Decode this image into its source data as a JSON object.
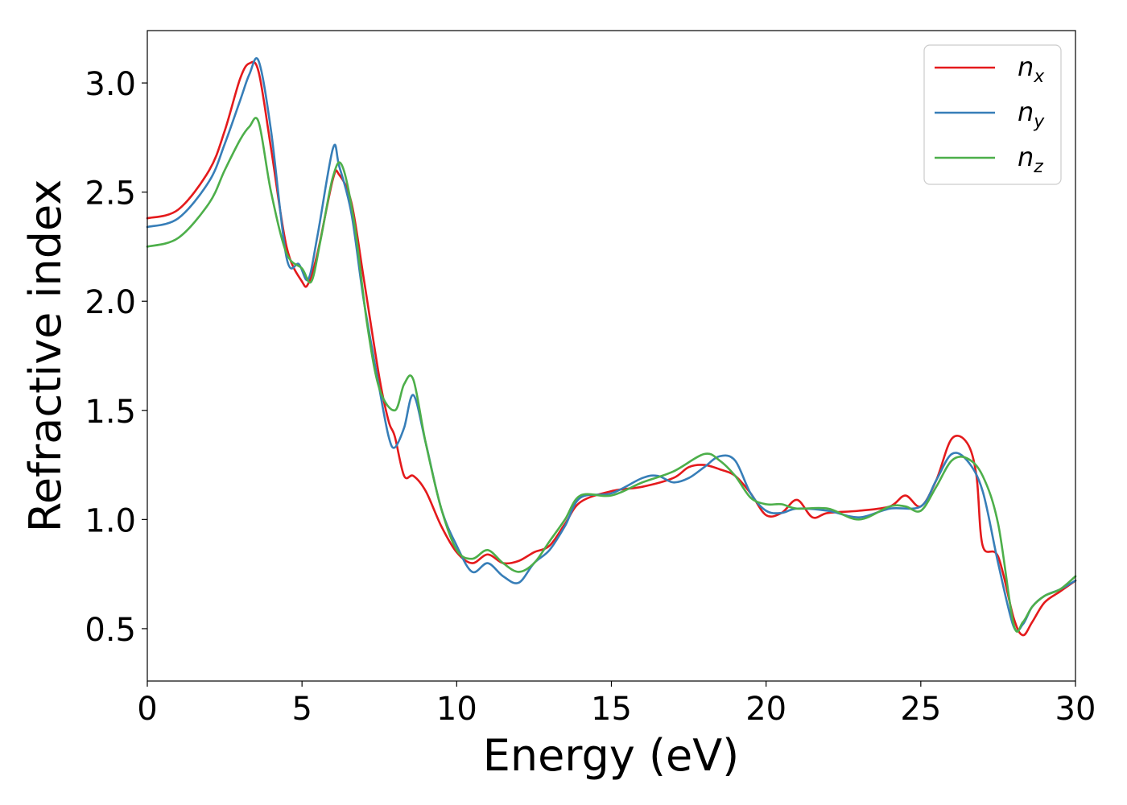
{
  "chart_data": {
    "type": "line",
    "xlabel": "Energy (eV)",
    "ylabel": "Refractive index",
    "xlim": [
      0,
      30
    ],
    "ylim": [
      0.26,
      3.24
    ],
    "xticks": [
      0,
      5,
      10,
      15,
      20,
      25,
      30
    ],
    "xtick_labels": [
      "0",
      "5",
      "10",
      "15",
      "20",
      "25",
      "30"
    ],
    "yticks": [
      0.5,
      1.0,
      1.5,
      2.0,
      2.5,
      3.0
    ],
    "ytick_labels": [
      "0.5",
      "1.0",
      "1.5",
      "2.0",
      "2.5",
      "3.0"
    ],
    "grid": false,
    "legend_position": "top-right",
    "series": [
      {
        "name": "n",
        "subscript": "x",
        "color": "#e41a1c",
        "x": [
          0,
          1,
          2,
          2.5,
          3,
          3.3,
          3.6,
          4,
          4.5,
          5,
          5.2,
          5.5,
          6,
          6.2,
          6.6,
          7,
          7.5,
          7.8,
          8,
          8.3,
          8.6,
          9,
          9.5,
          10,
          10.5,
          11,
          11.5,
          12,
          12.5,
          13,
          13.5,
          14,
          15,
          16,
          17,
          17.5,
          18,
          18.5,
          19,
          19.5,
          20,
          20.5,
          21,
          21.5,
          22,
          23,
          24,
          24.5,
          25,
          25.5,
          26,
          26.5,
          26.8,
          27,
          27.5,
          28,
          28.3,
          28.6,
          29,
          29.5,
          30
        ],
        "y": [
          2.38,
          2.42,
          2.6,
          2.78,
          3.02,
          3.09,
          3.05,
          2.7,
          2.25,
          2.09,
          2.08,
          2.22,
          2.56,
          2.58,
          2.45,
          2.1,
          1.65,
          1.45,
          1.38,
          1.2,
          1.2,
          1.13,
          0.97,
          0.85,
          0.8,
          0.84,
          0.8,
          0.81,
          0.85,
          0.88,
          0.98,
          1.08,
          1.13,
          1.15,
          1.19,
          1.24,
          1.25,
          1.23,
          1.2,
          1.12,
          1.02,
          1.03,
          1.09,
          1.01,
          1.03,
          1.04,
          1.06,
          1.11,
          1.06,
          1.18,
          1.37,
          1.35,
          1.2,
          0.88,
          0.83,
          0.55,
          0.47,
          0.53,
          0.62,
          0.67,
          0.72
        ]
      },
      {
        "name": "n",
        "subscript": "y",
        "color": "#377eb8",
        "x": [
          0,
          1,
          2,
          2.5,
          3,
          3.3,
          3.6,
          4,
          4.5,
          4.9,
          5.2,
          5.5,
          6,
          6.2,
          6.6,
          7,
          7.5,
          7.8,
          8,
          8.3,
          8.6,
          9,
          9.5,
          10,
          10.5,
          11,
          11.5,
          12,
          12.5,
          13,
          13.5,
          14,
          15,
          16,
          16.5,
          17,
          17.5,
          18,
          18.5,
          19,
          19.5,
          20,
          20.5,
          21,
          22,
          23,
          24,
          25,
          25.5,
          26,
          26.5,
          27,
          27.5,
          28,
          28.3,
          28.6,
          29,
          29.5,
          30
        ],
        "y": [
          2.34,
          2.38,
          2.55,
          2.72,
          2.92,
          3.04,
          3.1,
          2.78,
          2.2,
          2.17,
          2.1,
          2.3,
          2.7,
          2.62,
          2.4,
          2.0,
          1.6,
          1.38,
          1.33,
          1.42,
          1.57,
          1.35,
          1.05,
          0.88,
          0.76,
          0.8,
          0.74,
          0.71,
          0.8,
          0.86,
          0.97,
          1.1,
          1.12,
          1.19,
          1.2,
          1.17,
          1.19,
          1.24,
          1.29,
          1.27,
          1.12,
          1.04,
          1.03,
          1.05,
          1.04,
          1.01,
          1.05,
          1.06,
          1.18,
          1.3,
          1.27,
          1.13,
          0.8,
          0.51,
          0.52,
          0.6,
          0.65,
          0.68,
          0.72
        ]
      },
      {
        "name": "n",
        "subscript": "z",
        "color": "#4daf4a",
        "x": [
          0,
          1,
          2,
          2.5,
          3,
          3.3,
          3.6,
          4,
          4.5,
          5,
          5.3,
          5.6,
          6,
          6.3,
          6.7,
          7.1,
          7.5,
          8,
          8.3,
          8.6,
          9,
          9.5,
          10,
          10.5,
          11,
          11.5,
          12,
          12.5,
          13,
          13.5,
          14,
          15,
          16,
          17,
          18,
          18.5,
          19,
          19.5,
          20,
          20.5,
          21,
          22,
          23,
          24,
          24.5,
          25,
          25.5,
          26,
          26.5,
          27,
          27.5,
          28,
          28.3,
          28.6,
          29,
          29.5,
          30
        ],
        "y": [
          2.25,
          2.29,
          2.45,
          2.6,
          2.74,
          2.8,
          2.82,
          2.5,
          2.22,
          2.15,
          2.09,
          2.28,
          2.57,
          2.62,
          2.35,
          1.9,
          1.6,
          1.5,
          1.62,
          1.64,
          1.35,
          1.05,
          0.86,
          0.82,
          0.86,
          0.8,
          0.76,
          0.8,
          0.9,
          1.0,
          1.11,
          1.11,
          1.17,
          1.22,
          1.3,
          1.27,
          1.2,
          1.1,
          1.07,
          1.07,
          1.05,
          1.05,
          1.0,
          1.06,
          1.06,
          1.04,
          1.15,
          1.27,
          1.28,
          1.2,
          0.98,
          0.52,
          0.53,
          0.6,
          0.65,
          0.68,
          0.74
        ]
      }
    ]
  }
}
